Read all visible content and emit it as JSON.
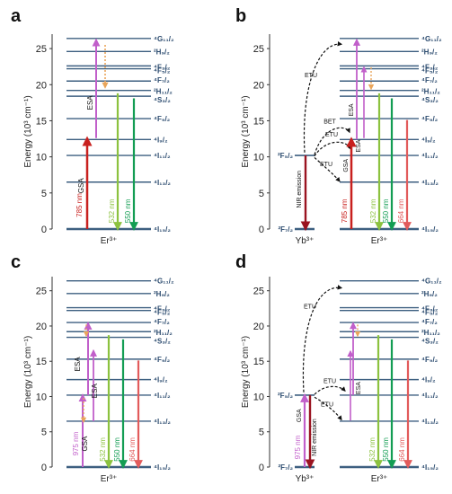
{
  "panels": [
    {
      "letter": "a",
      "ylabel": "Energy (10³ cm⁻¹)",
      "ticks": [
        "0",
        "5",
        "10",
        "15",
        "20",
        "25"
      ],
      "ion_er": "Er³⁺",
      "arrows": [
        "GSA",
        "ESA",
        "785 nm",
        "532 nm",
        "550 nm"
      ]
    },
    {
      "letter": "b",
      "ylabel": "Energy (10³ cm⁻¹)",
      "ticks": [
        "0",
        "5",
        "10",
        "15",
        "20",
        "25"
      ],
      "ion_yb": "Yb³⁺",
      "ion_er": "Er³⁺",
      "yb_levels": [
        "²F₅/₂",
        "²F₇/₂"
      ],
      "arrows": [
        "ETU",
        "BET",
        "ETU",
        "ETU",
        "NIR emission",
        "GSA",
        "ESA",
        "ESA",
        "785 nm",
        "532 nm",
        "550 nm",
        "664 nm"
      ]
    },
    {
      "letter": "c",
      "ylabel": "Energy (10³ cm⁻¹)",
      "ticks": [
        "0",
        "5",
        "10",
        "15",
        "20",
        "25"
      ],
      "ion_er": "Er³⁺",
      "arrows": [
        "ESA",
        "ESA",
        "GSA",
        "975 nm",
        "532 nm",
        "550 nm",
        "664 nm"
      ]
    },
    {
      "letter": "d",
      "ylabel": "Energy (10³ cm⁻¹)",
      "ticks": [
        "0",
        "5",
        "10",
        "15",
        "20",
        "25"
      ],
      "ion_yb": "Yb³⁺",
      "ion_er": "Er³⁺",
      "yb_levels": [
        "²F₅/₂",
        "²F₇/₂"
      ],
      "arrows": [
        "ETU",
        "ETU",
        "ETU",
        "GSA",
        "NIR emission",
        "975 nm",
        "ESA",
        "532 nm",
        "550 nm",
        "664 nm"
      ]
    }
  ],
  "er_levels": [
    "⁴G₁₁/₂",
    "²H₉/₂",
    "⁴F₃/₂",
    "⁴F₅/₂",
    "⁴F₇/₂",
    "²H₁₁/₂",
    "⁴S₃/₂",
    "⁴F₉/₂",
    "⁴I₉/₂",
    "⁴I₁₁/₂",
    "⁴I₁₃/₂",
    "⁴I₁₅/₂"
  ],
  "colors": {
    "level": "#3d5f80",
    "gsa_red": "#c8201e",
    "magenta": "#c15fca",
    "green_light": "#8cc23f",
    "green_dark": "#139d53",
    "salmon": "#e25b5b",
    "orange_dash": "#e9a55a",
    "yb_red": "#9a1320",
    "axis": "#333333",
    "label": "#2a4a6e"
  }
}
